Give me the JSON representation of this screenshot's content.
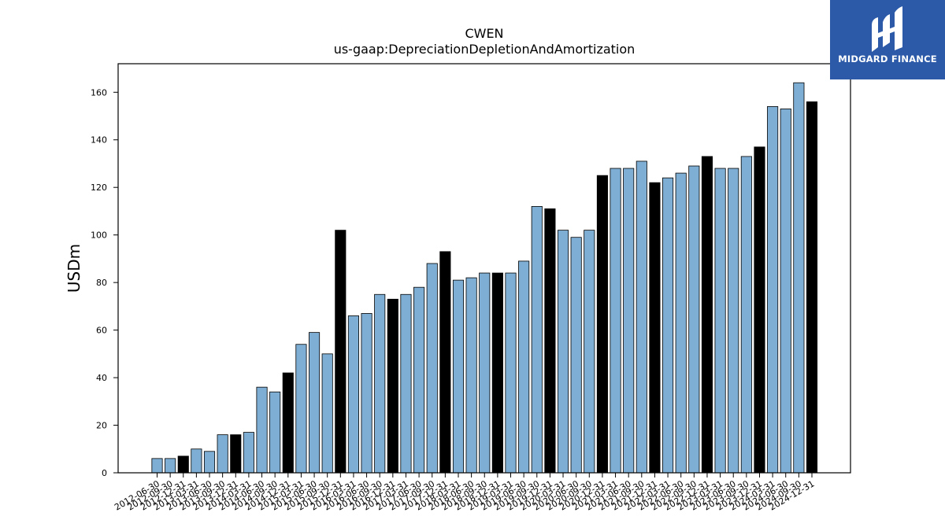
{
  "chart_data": {
    "type": "bar",
    "title": "CWEN",
    "subtitle": "us-gaap:DepreciationDepletionAndAmortization",
    "xlabel": "",
    "ylabel": "USDm",
    "ylim": [
      0,
      172
    ],
    "yticks": [
      0,
      20,
      40,
      60,
      80,
      100,
      120,
      140,
      160
    ],
    "grid": false,
    "legend": "none",
    "colors": {
      "quarter": "#7eaed3",
      "year_end": "#000000",
      "edge": "#000000"
    },
    "categories": [
      "2012-06-30",
      "2012-09-30",
      "2012-12-31",
      "2013-03-31",
      "2013-06-30",
      "2013-09-30",
      "2013-12-31",
      "2014-03-31",
      "2014-06-30",
      "2014-09-30",
      "2014-12-31",
      "2015-03-31",
      "2015-06-30",
      "2015-09-30",
      "2015-12-31",
      "2016-03-31",
      "2016-06-30",
      "2016-09-30",
      "2016-12-31",
      "2017-03-31",
      "2017-06-30",
      "2017-09-30",
      "2017-12-31",
      "2018-03-31",
      "2018-06-30",
      "2018-09-30",
      "2018-12-31",
      "2019-03-31",
      "2019-06-30",
      "2019-09-30",
      "2019-12-31",
      "2020-03-31",
      "2020-06-30",
      "2020-09-30",
      "2020-12-31",
      "2021-03-31",
      "2021-06-30",
      "2021-09-30",
      "2021-12-31",
      "2022-03-31",
      "2022-06-30",
      "2022-09-30",
      "2022-12-31",
      "2023-03-31",
      "2023-06-30",
      "2023-09-30",
      "2023-12-31",
      "2024-03-31",
      "2024-06-30",
      "2024-09-30",
      "2024-12-31"
    ],
    "values": [
      6,
      6,
      7,
      10,
      9,
      16,
      16,
      17,
      36,
      34,
      42,
      54,
      59,
      50,
      102,
      66,
      67,
      75,
      73,
      75,
      78,
      88,
      93,
      81,
      82,
      84,
      84,
      84,
      89,
      112,
      111,
      102,
      99,
      102,
      125,
      128,
      128,
      131,
      122,
      124,
      126,
      129,
      133,
      128,
      128,
      133,
      137,
      154,
      153,
      164,
      156
    ],
    "highlight": [
      false,
      false,
      true,
      false,
      false,
      false,
      true,
      false,
      false,
      false,
      true,
      false,
      false,
      false,
      true,
      false,
      false,
      false,
      true,
      false,
      false,
      false,
      true,
      false,
      false,
      false,
      true,
      false,
      false,
      false,
      true,
      false,
      false,
      false,
      true,
      false,
      false,
      false,
      true,
      false,
      false,
      false,
      true,
      false,
      false,
      false,
      true,
      false,
      false,
      false,
      true
    ]
  },
  "logo": {
    "text": "MIDGARD FINANCE",
    "icon": "midgard-logo-icon",
    "background": "#2c5aa8"
  }
}
